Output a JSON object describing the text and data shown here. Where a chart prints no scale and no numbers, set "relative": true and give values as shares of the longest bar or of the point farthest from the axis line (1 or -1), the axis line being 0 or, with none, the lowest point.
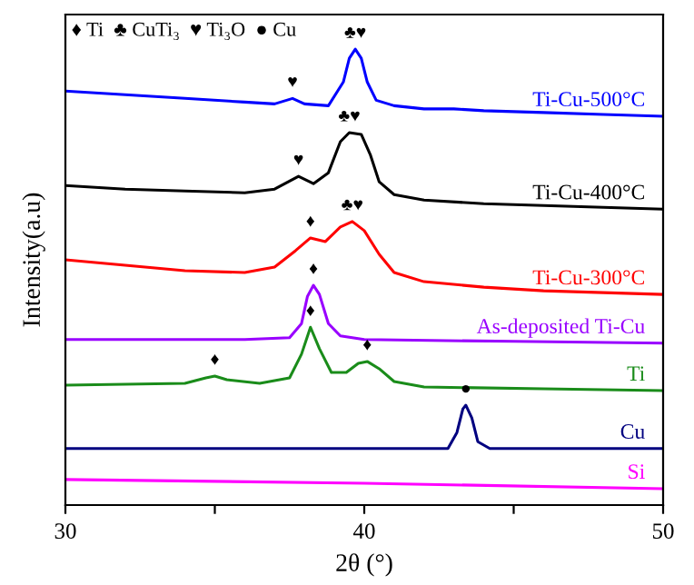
{
  "chart_data": {
    "type": "line",
    "relative": true,
    "xlabel": "2θ (°)",
    "ylabel": "Intensity(a.u)",
    "xlim": [
      30,
      50
    ],
    "xticks": [
      30,
      {
        "value": 35,
        "label": null
      },
      40,
      {
        "value": 45,
        "label": null
      },
      50
    ],
    "tick_labels": "x",
    "grid": false,
    "legend": false,
    "marker": "none",
    "line_style": "solid",
    "series": [
      {
        "name": "Ti-Cu-500°C",
        "color": "#0000ff",
        "x": [
          30,
          32,
          34,
          36,
          37,
          37.6,
          38,
          38.8,
          39.3,
          39.5,
          39.7,
          39.9,
          40.1,
          40.4,
          41,
          42,
          43,
          44,
          46,
          48,
          50
        ],
        "values": [
          0.908,
          0.9,
          0.892,
          0.884,
          0.88,
          0.892,
          0.88,
          0.876,
          0.928,
          0.98,
          1.0,
          0.98,
          0.928,
          0.888,
          0.876,
          0.869,
          0.869,
          0.865,
          0.861,
          0.857,
          0.853
        ]
      },
      {
        "name": "Ti-Cu-400°C",
        "color": "#000000",
        "x": [
          30,
          32,
          34,
          36,
          37,
          37.8,
          38.3,
          38.8,
          39.2,
          39.5,
          39.9,
          40.2,
          40.5,
          41,
          42,
          44,
          46,
          48,
          50
        ],
        "values": [
          0.701,
          0.693,
          0.689,
          0.685,
          0.693,
          0.721,
          0.705,
          0.729,
          0.797,
          0.817,
          0.813,
          0.769,
          0.709,
          0.681,
          0.669,
          0.661,
          0.657,
          0.653,
          0.649
        ]
      },
      {
        "name": "Ti-Cu-300°C",
        "color": "#ff0000",
        "x": [
          30,
          32,
          34,
          36,
          37,
          37.7,
          38.2,
          38.7,
          39.2,
          39.6,
          40.0,
          40.5,
          41,
          42,
          44,
          46,
          48,
          50
        ],
        "values": [
          0.538,
          0.526,
          0.514,
          0.51,
          0.522,
          0.558,
          0.586,
          0.578,
          0.61,
          0.622,
          0.602,
          0.55,
          0.51,
          0.49,
          0.478,
          0.47,
          0.466,
          0.462
        ]
      },
      {
        "name": "As-deposited Ti-Cu",
        "color": "#9900ff",
        "x": [
          30,
          36,
          37.5,
          37.9,
          38.1,
          38.3,
          38.5,
          38.8,
          39.2,
          40,
          45,
          50
        ],
        "values": [
          0.363,
          0.363,
          0.367,
          0.398,
          0.458,
          0.482,
          0.462,
          0.398,
          0.371,
          0.363,
          0.359,
          0.355
        ]
      },
      {
        "name": "Ti",
        "color": "#1a8c1a",
        "x": [
          30,
          34,
          34.7,
          35.0,
          35.4,
          36.5,
          37.5,
          37.9,
          38.2,
          38.5,
          38.9,
          39.4,
          39.8,
          40.1,
          40.5,
          41,
          42,
          46,
          50
        ],
        "values": [
          0.263,
          0.267,
          0.279,
          0.283,
          0.275,
          0.267,
          0.279,
          0.331,
          0.39,
          0.343,
          0.291,
          0.291,
          0.311,
          0.315,
          0.299,
          0.271,
          0.259,
          0.255,
          0.251
        ]
      },
      {
        "name": "Cu",
        "color": "#000080",
        "x": [
          30,
          42.8,
          43.1,
          43.3,
          43.4,
          43.6,
          43.8,
          44.2,
          50
        ],
        "values": [
          0.124,
          0.124,
          0.159,
          0.211,
          0.219,
          0.191,
          0.139,
          0.124,
          0.124
        ]
      },
      {
        "name": "Si",
        "color": "#ff00ff",
        "x": [
          30,
          40,
          50
        ],
        "values": [
          0.056,
          0.048,
          0.036
        ]
      }
    ],
    "annotations": [
      "♦ Ti  ♣ CuTi₃  ♥ Ti₃O  ● Cu",
      {
        "text": "♥",
        "x": 37.6,
        "y": 0.892
      },
      {
        "text": "♣♥",
        "x": 39.7,
        "y": 1.0
      },
      {
        "text": "♥",
        "x": 37.8,
        "y": 0.721
      },
      {
        "text": "♣♥",
        "x": 39.5,
        "y": 0.817
      },
      {
        "text": "♦",
        "x": 38.2,
        "y": 0.586
      },
      {
        "text": "♣♥",
        "x": 39.6,
        "y": 0.622
      },
      {
        "text": "♦",
        "x": 38.3,
        "y": 0.482
      },
      {
        "text": "♦",
        "x": 35.0,
        "y": 0.283
      },
      {
        "text": "♦",
        "x": 38.2,
        "y": 0.39
      },
      {
        "text": "♦",
        "x": 40.1,
        "y": 0.315
      },
      {
        "text": "●",
        "x": 43.4,
        "y": 0.219
      }
    ]
  }
}
